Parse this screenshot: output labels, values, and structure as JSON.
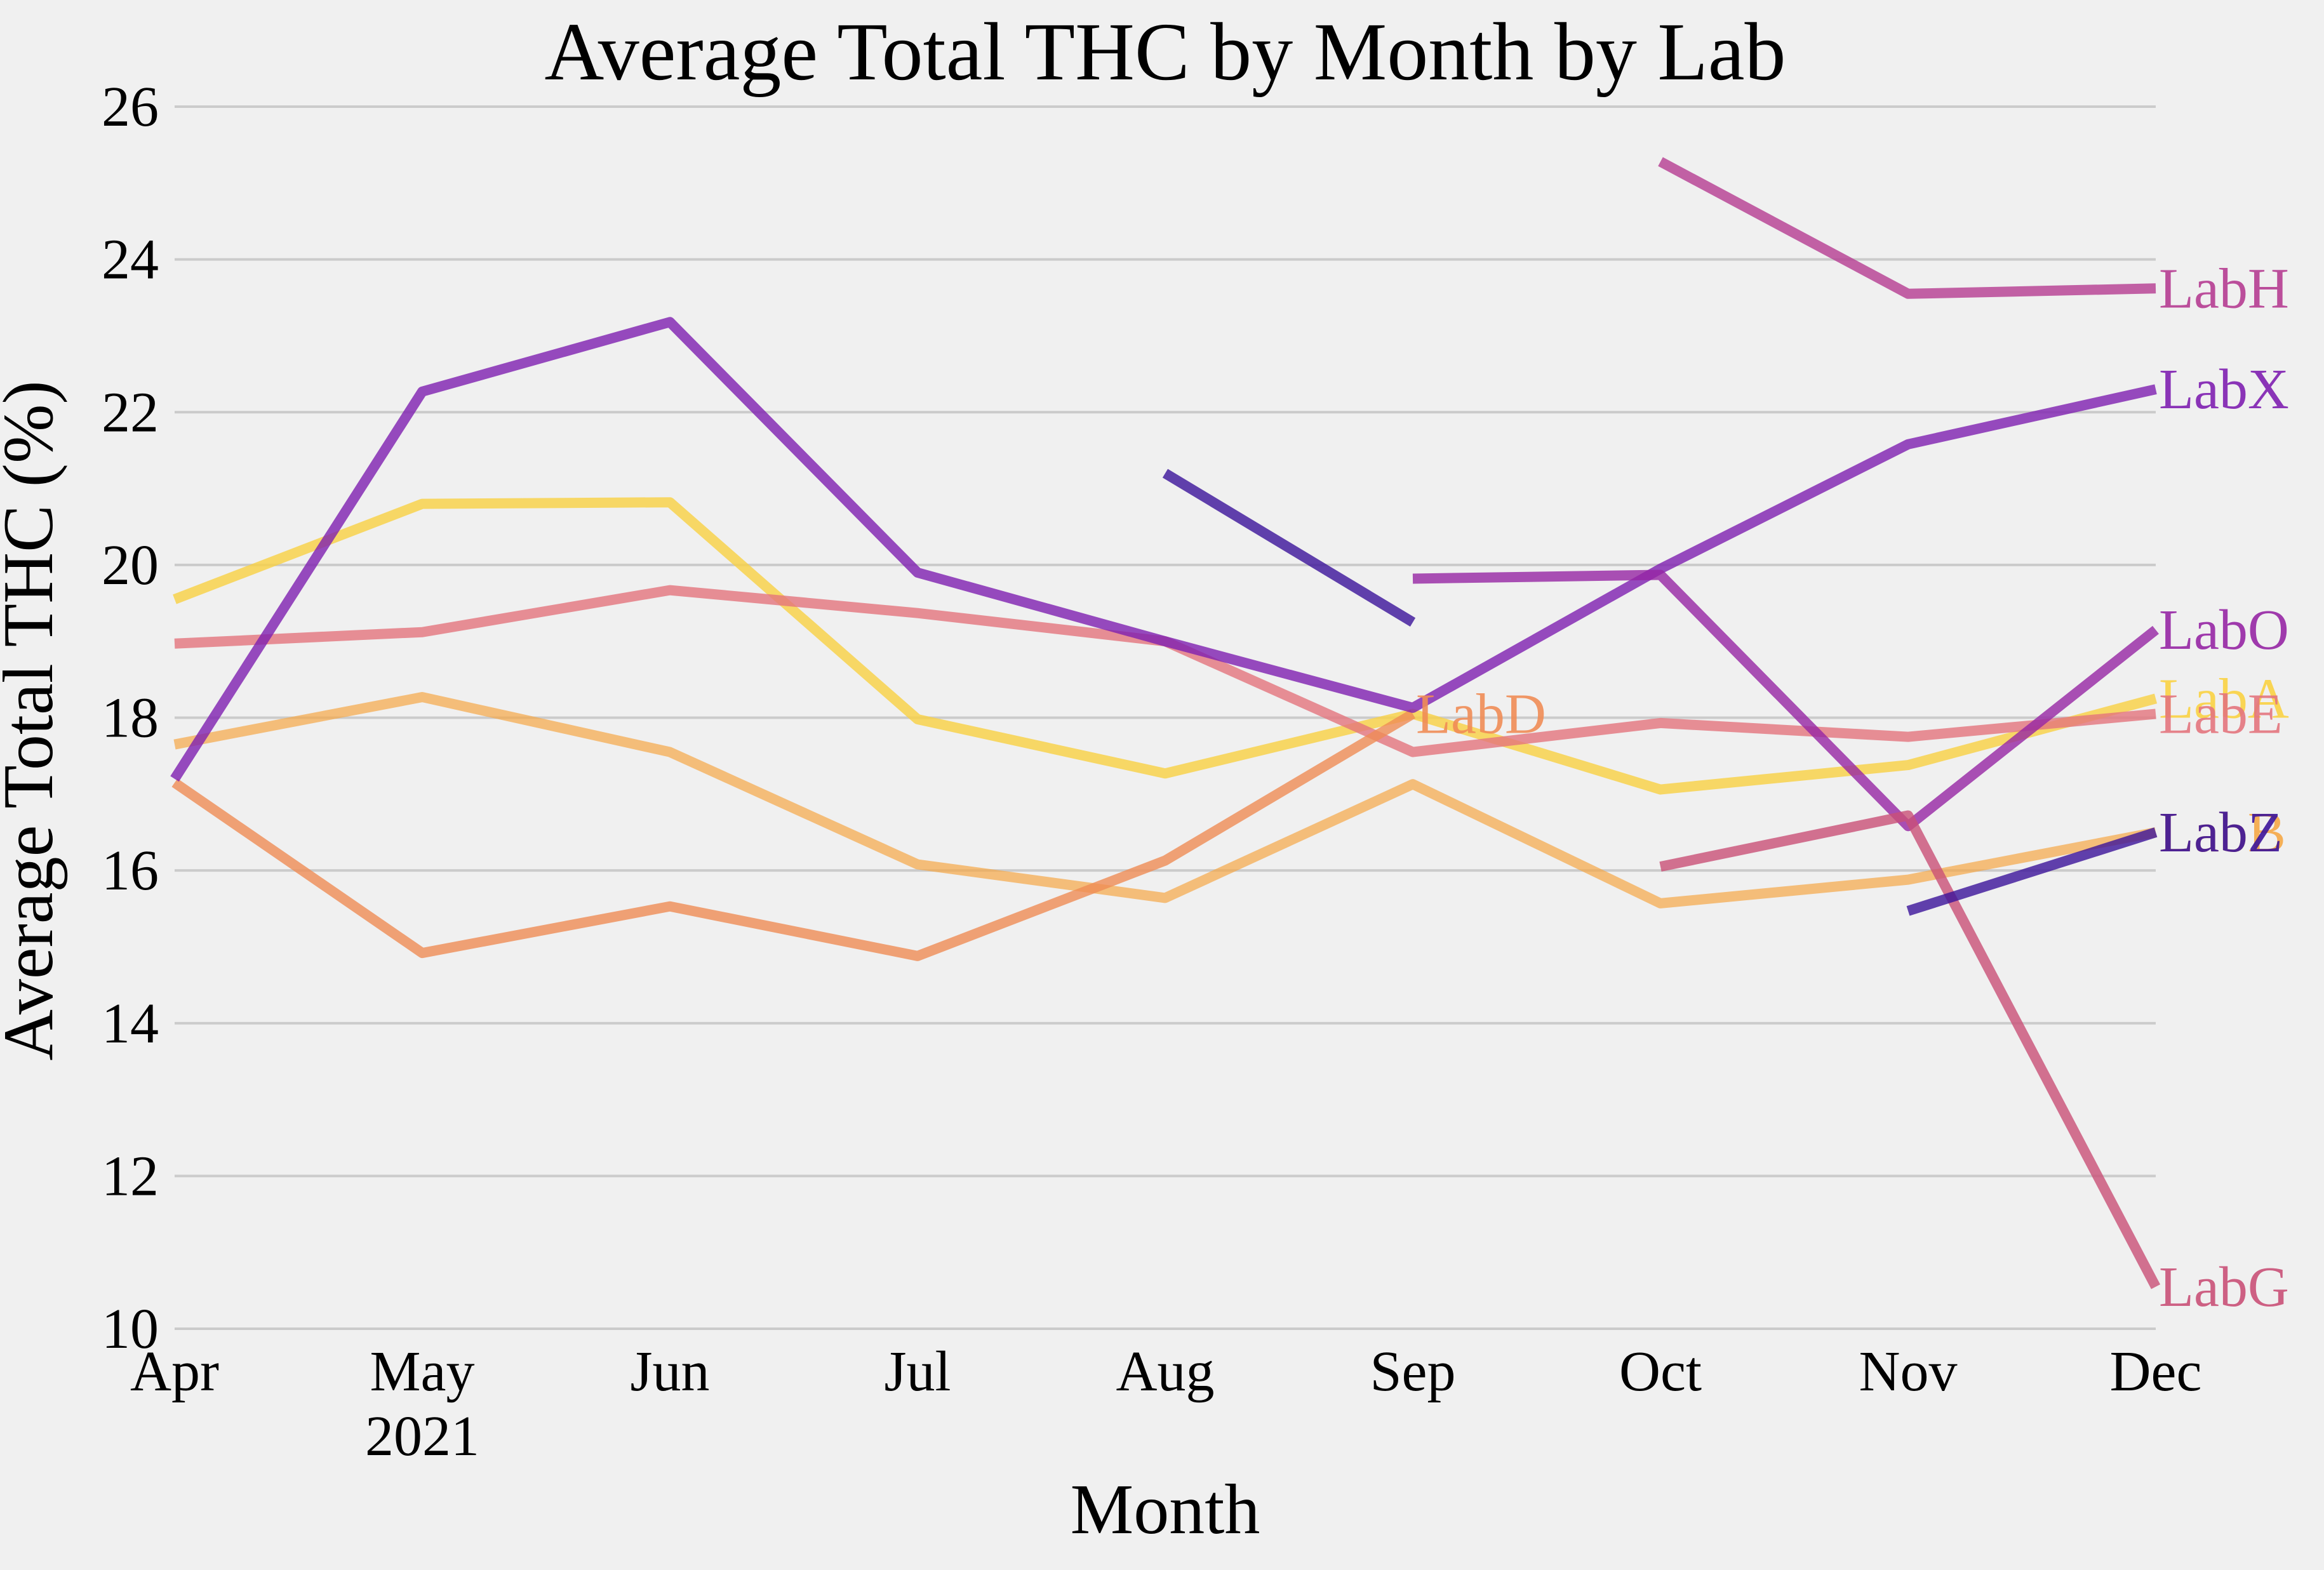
{
  "chart_data": {
    "type": "line",
    "title": "Average Total THC by Month by Lab",
    "xlabel": "Month",
    "ylabel": "Average Total THC (%)",
    "categories": [
      "Apr",
      "May",
      "Jun",
      "Jul",
      "Aug",
      "Sep",
      "Oct",
      "Nov",
      "Dec"
    ],
    "year_label": "2021",
    "ylim": [
      10,
      26
    ],
    "yticks": [
      10,
      12,
      14,
      16,
      18,
      20,
      22,
      24,
      26
    ],
    "grid": "horizontal",
    "series": [
      {
        "name": "LabA",
        "color": "#f9d142",
        "opacity": 0.8,
        "values": [
          19.55,
          20.8,
          20.82,
          17.98,
          17.27,
          18.05,
          17.06,
          17.38,
          18.25
        ]
      },
      {
        "name": "LabE",
        "color": "#e3747d",
        "opacity": 0.8,
        "values": [
          18.97,
          19.12,
          19.67,
          19.37,
          19.0,
          17.55,
          17.93,
          17.75,
          18.05
        ]
      },
      {
        "name": "LabB",
        "color": "#f5a746",
        "opacity": 0.7,
        "values": [
          17.65,
          18.27,
          17.55,
          16.08,
          15.64,
          17.13,
          15.57,
          15.88,
          16.5
        ]
      },
      {
        "name": "LabD",
        "color": "#ef8c55",
        "opacity": 0.8,
        "values": [
          17.15,
          14.92,
          15.53,
          14.88,
          16.13,
          18.05,
          null,
          null,
          null
        ]
      },
      {
        "name": "LabX",
        "color": "#7e1fb0",
        "opacity": 0.8,
        "values": [
          17.2,
          22.27,
          23.18,
          19.9,
          19.0,
          18.13,
          19.95,
          21.58,
          22.3
        ]
      },
      {
        "name": "LabO",
        "color": "#9626a4",
        "opacity": 0.8,
        "values": [
          null,
          null,
          null,
          null,
          null,
          19.82,
          19.87,
          16.58,
          19.15
        ]
      },
      {
        "name": "LabH",
        "color": "#b53c91",
        "opacity": 0.8,
        "values": [
          null,
          null,
          null,
          null,
          null,
          null,
          25.28,
          23.55,
          23.62
        ]
      },
      {
        "name": "LabG",
        "color": "#c95077",
        "opacity": 0.8,
        "values": [
          null,
          null,
          null,
          null,
          null,
          null,
          16.05,
          16.72,
          10.55
        ]
      },
      {
        "name": null,
        "color": "#3b139a",
        "opacity": 0.8,
        "values": [
          null,
          null,
          null,
          null,
          21.2,
          19.25,
          null,
          null,
          null
        ]
      },
      {
        "name": "LabZ",
        "color": "#3b139a",
        "opacity": 0.8,
        "values": [
          null,
          null,
          null,
          null,
          null,
          null,
          null,
          15.47,
          16.5
        ]
      }
    ]
  }
}
